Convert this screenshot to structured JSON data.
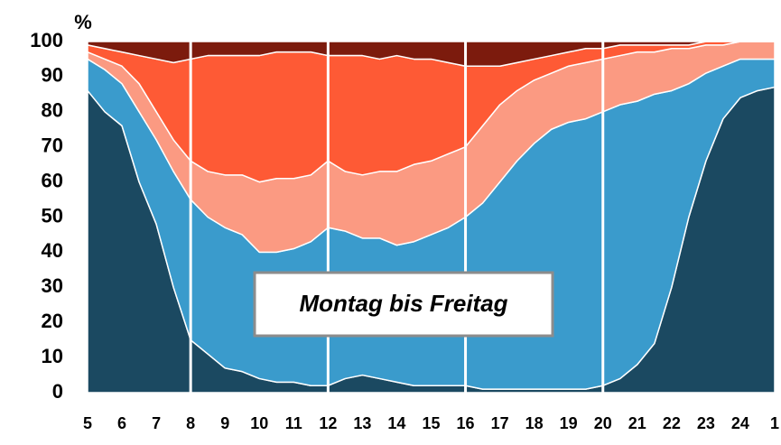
{
  "chart_data": {
    "type": "stacked_area",
    "y_label": "%",
    "annotation": "Montag bis Freitag",
    "x": [
      5,
      5.5,
      6,
      6.5,
      7,
      7.5,
      8,
      8.5,
      9,
      9.5,
      10,
      10.5,
      11,
      11.5,
      12,
      12.5,
      13,
      13.5,
      14,
      14.5,
      15,
      15.5,
      16,
      16.5,
      17,
      17.5,
      18,
      18.5,
      19,
      19.5,
      20,
      20.5,
      21,
      21.5,
      22,
      22.5,
      23,
      23.5,
      24,
      24.5,
      25
    ],
    "series": [
      {
        "color": "#1b4961",
        "values": [
          86,
          80,
          76,
          60,
          48,
          30,
          15,
          11,
          7,
          6,
          4,
          3,
          3,
          2,
          2,
          4,
          5,
          4,
          3,
          2,
          2,
          2,
          2,
          1,
          1,
          1,
          1,
          1,
          1,
          1,
          2,
          4,
          8,
          14,
          30,
          50,
          66,
          78,
          84,
          86,
          87
        ]
      },
      {
        "color": "#3a9bcc",
        "values": [
          9,
          12,
          12,
          20,
          24,
          33,
          40,
          39,
          40,
          39,
          36,
          37,
          38,
          41,
          45,
          42,
          39,
          40,
          39,
          41,
          43,
          45,
          48,
          53,
          59,
          65,
          70,
          74,
          76,
          77,
          78,
          78,
          75,
          71,
          56,
          38,
          25,
          15,
          11,
          9,
          8
        ]
      },
      {
        "color": "#fb9a82",
        "values": [
          2,
          3,
          5,
          8,
          8,
          9,
          11,
          13,
          15,
          17,
          20,
          21,
          20,
          19,
          19,
          17,
          18,
          19,
          21,
          22,
          21,
          21,
          20,
          22,
          22,
          20,
          18,
          16,
          16,
          16,
          15,
          14,
          14,
          12,
          12,
          10,
          8,
          6,
          5,
          5,
          5
        ]
      },
      {
        "color": "#fe5a35",
        "values": [
          2,
          3,
          4,
          8,
          15,
          22,
          29,
          33,
          34,
          34,
          36,
          36,
          36,
          35,
          30,
          33,
          34,
          32,
          33,
          30,
          29,
          26,
          23,
          17,
          11,
          8,
          6,
          5,
          4,
          4,
          3,
          3,
          2,
          2,
          1,
          1,
          1,
          1,
          0,
          0,
          0
        ]
      },
      {
        "color": "#7c1b0d",
        "values": [
          1,
          2,
          3,
          4,
          5,
          6,
          5,
          4,
          4,
          4,
          4,
          3,
          3,
          3,
          4,
          4,
          4,
          5,
          4,
          5,
          5,
          6,
          7,
          7,
          7,
          6,
          5,
          4,
          3,
          2,
          2,
          1,
          1,
          1,
          1,
          1,
          0,
          0,
          0,
          0,
          0
        ]
      }
    ],
    "vlines": [
      8,
      12,
      16,
      20
    ],
    "xlim": [
      5,
      25
    ],
    "xticks": [
      5,
      6,
      7,
      8,
      9,
      10,
      11,
      12,
      13,
      14,
      15,
      16,
      17,
      18,
      19,
      20,
      21,
      22,
      23,
      24,
      {
        "value": 25,
        "label": "1"
      }
    ],
    "ylim": [
      0,
      100
    ],
    "yticks": [
      0,
      10,
      20,
      30,
      40,
      50,
      60,
      70,
      80,
      90,
      100
    ]
  }
}
